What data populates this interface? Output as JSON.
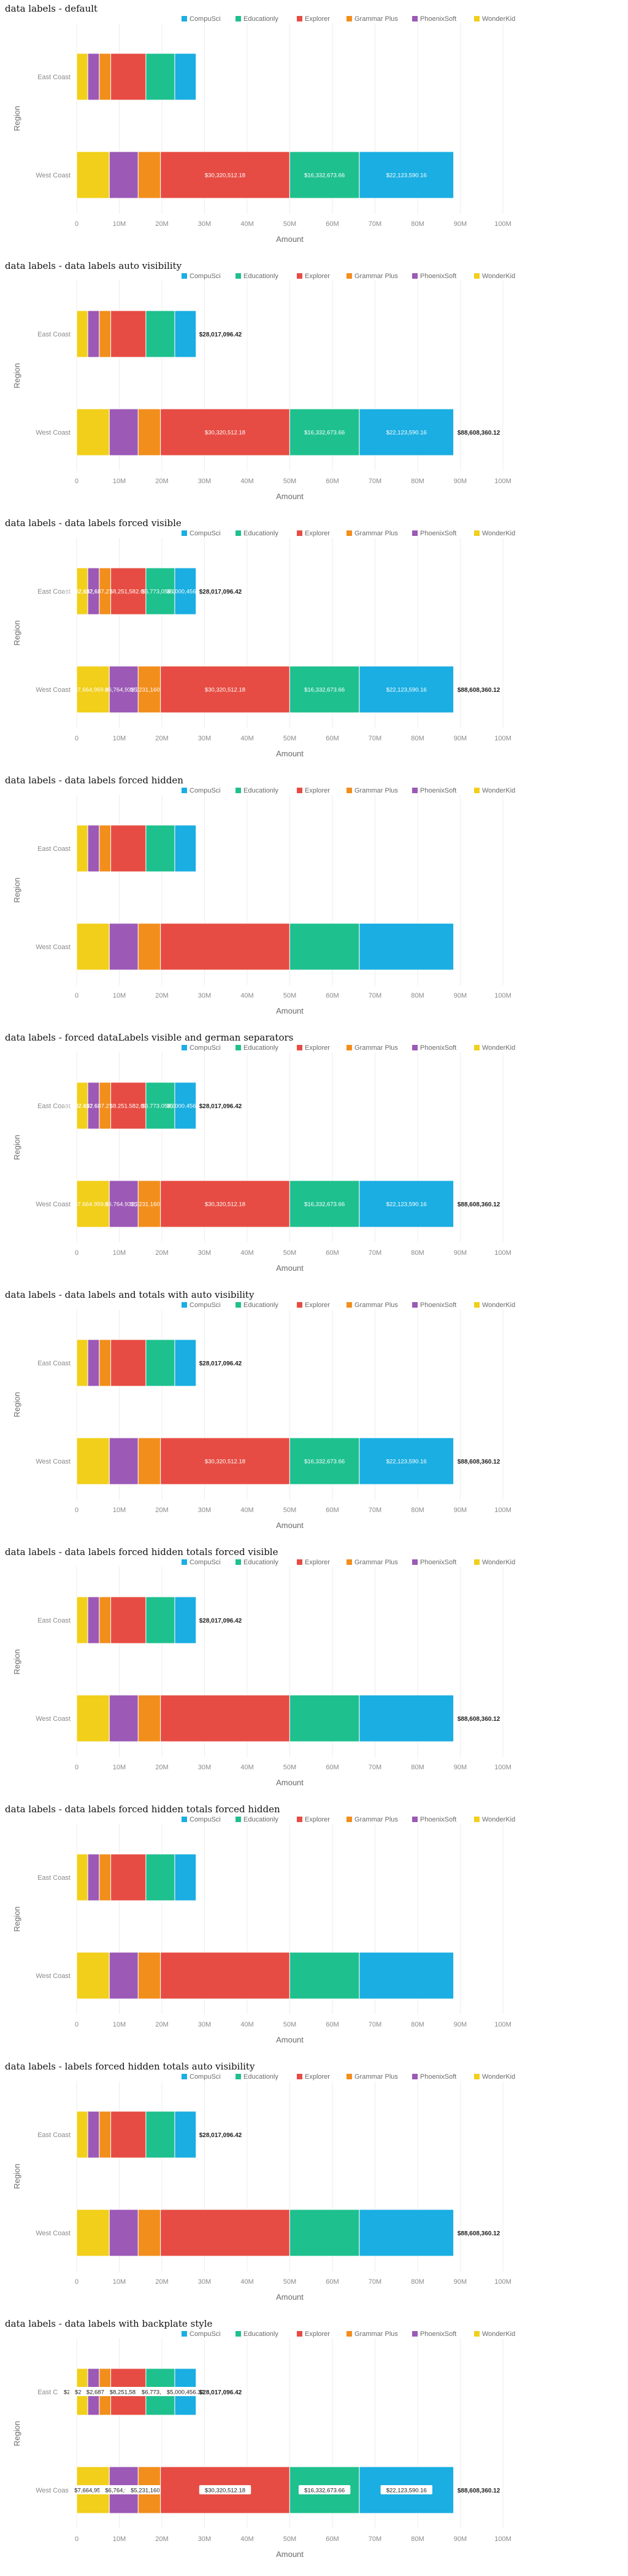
{
  "colors": {
    "CompuSci": "#1aaee2",
    "Educationly": "#1ec08e",
    "Explorer": "#e64c43",
    "Grammar Plus": "#f28e1c",
    "PhoenixSoft": "#9c59b6",
    "WonderKid": "#f1cf1a"
  },
  "chart_data": [
    {
      "type": "bar",
      "title": "data labels - default",
      "orientation": "horizontal",
      "stacked": true,
      "xlabel": "Amount",
      "ylabel": "Region",
      "categories": [
        "East Coast",
        "West Coast"
      ],
      "x_ticks": [
        "0",
        "10M",
        "20M",
        "30M",
        "40M",
        "50M",
        "60M",
        "70M",
        "80M",
        "90M",
        "100M"
      ],
      "xlim": [
        0,
        100000000
      ],
      "legend": "top-right",
      "grid": true,
      "series": [
        {
          "name": "WonderKid",
          "values": [
            2607114,
            7664959
          ],
          "labels": [
            "",
            ""
          ]
        },
        {
          "name": "PhoenixSoft",
          "values": [
            2697617,
            6764932
          ],
          "labels": [
            "",
            ""
          ]
        },
        {
          "name": "Grammar Plus",
          "values": [
            2687273,
            5231160
          ],
          "labels": [
            "",
            ""
          ]
        },
        {
          "name": "Explorer",
          "values": [
            8251582,
            30320512
          ],
          "labels": [
            "",
            "$30,320,512.18"
          ]
        },
        {
          "name": "Educationly",
          "values": [
            6773054,
            16332674
          ],
          "labels": [
            "",
            "$16,332,673.66"
          ]
        },
        {
          "name": "CompuSci",
          "values": [
            5000456,
            22123590
          ],
          "labels": [
            "",
            "$22,123,590.16"
          ]
        }
      ],
      "totals": [
        28017096,
        88608360
      ],
      "total_labels": [
        "",
        ""
      ]
    },
    {
      "type": "bar",
      "title": "data labels - data labels auto visibility",
      "orientation": "horizontal",
      "stacked": true,
      "xlabel": "Amount",
      "ylabel": "Region",
      "categories": [
        "East Coast",
        "West Coast"
      ],
      "x_ticks": [
        "0",
        "10M",
        "20M",
        "30M",
        "40M",
        "50M",
        "60M",
        "70M",
        "80M",
        "90M",
        "100M"
      ],
      "xlim": [
        0,
        100000000
      ],
      "legend": "top-right",
      "grid": true,
      "series": [
        {
          "name": "WonderKid",
          "values": [
            2607114,
            7664959
          ],
          "labels": [
            "",
            ""
          ]
        },
        {
          "name": "PhoenixSoft",
          "values": [
            2697617,
            6764932
          ],
          "labels": [
            "",
            ""
          ]
        },
        {
          "name": "Grammar Plus",
          "values": [
            2687273,
            5231160
          ],
          "labels": [
            "",
            ""
          ]
        },
        {
          "name": "Explorer",
          "values": [
            8251582,
            30320512
          ],
          "labels": [
            "",
            "$30,320,512.18"
          ]
        },
        {
          "name": "Educationly",
          "values": [
            6773054,
            16332674
          ],
          "labels": [
            "",
            "$16,332,673.66"
          ]
        },
        {
          "name": "CompuSci",
          "values": [
            5000456,
            22123590
          ],
          "labels": [
            "",
            "$22,123,590.16"
          ]
        }
      ],
      "totals": [
        28017096,
        88608360
      ],
      "total_labels": [
        "$28,017,096.42",
        "$88,608,360.12"
      ]
    },
    {
      "type": "bar",
      "title": "data labels - data labels forced visible",
      "orientation": "horizontal",
      "stacked": true,
      "xlabel": "Amount",
      "ylabel": "Region",
      "categories": [
        "East Coast",
        "West Coast"
      ],
      "x_ticks": [
        "0",
        "10M",
        "20M",
        "30M",
        "40M",
        "50M",
        "60M",
        "70M",
        "80M",
        "90M",
        "100M"
      ],
      "xlim": [
        0,
        100000000
      ],
      "legend": "top-right",
      "grid": true,
      "series": [
        {
          "name": "WonderKid",
          "values": [
            2607114,
            7664959
          ],
          "labels": [
            "$2,607,114.07",
            "$7,664,959.07"
          ]
        },
        {
          "name": "PhoenixSoft",
          "values": [
            2697617,
            6764932
          ],
          "labels": [
            "$2,697,617.62",
            "$6,764,932.35"
          ]
        },
        {
          "name": "Grammar Plus",
          "values": [
            2687273,
            5231160
          ],
          "labels": [
            "$2,687,273.21",
            "$5,231,160.48"
          ]
        },
        {
          "name": "Explorer",
          "values": [
            8251582,
            30320512
          ],
          "labels": [
            "$8,251,582.60",
            "$30,320,512.18"
          ]
        },
        {
          "name": "Educationly",
          "values": [
            6773054,
            16332674
          ],
          "labels": [
            "$6,773,054.00",
            "$16,332,673.66"
          ]
        },
        {
          "name": "CompuSci",
          "values": [
            5000456,
            22123590
          ],
          "labels": [
            "$5,000,456.32",
            "$22,123,590.16"
          ]
        }
      ],
      "totals": [
        28017096,
        88608360
      ],
      "total_labels": [
        "$28,017,096.42",
        "$88,608,360.12"
      ]
    },
    {
      "type": "bar",
      "title": "data labels - data labels forced hidden",
      "orientation": "horizontal",
      "stacked": true,
      "xlabel": "Amount",
      "ylabel": "Region",
      "categories": [
        "East Coast",
        "West Coast"
      ],
      "x_ticks": [
        "0",
        "10M",
        "20M",
        "30M",
        "40M",
        "50M",
        "60M",
        "70M",
        "80M",
        "90M",
        "100M"
      ],
      "xlim": [
        0,
        100000000
      ],
      "legend": "top-right",
      "grid": true,
      "series": [
        {
          "name": "WonderKid",
          "values": [
            2607114,
            7664959
          ],
          "labels": [
            "",
            ""
          ]
        },
        {
          "name": "PhoenixSoft",
          "values": [
            2697617,
            6764932
          ],
          "labels": [
            "",
            ""
          ]
        },
        {
          "name": "Grammar Plus",
          "values": [
            2687273,
            5231160
          ],
          "labels": [
            "",
            ""
          ]
        },
        {
          "name": "Explorer",
          "values": [
            8251582,
            30320512
          ],
          "labels": [
            "",
            ""
          ]
        },
        {
          "name": "Educationly",
          "values": [
            6773054,
            16332674
          ],
          "labels": [
            "",
            ""
          ]
        },
        {
          "name": "CompuSci",
          "values": [
            5000456,
            22123590
          ],
          "labels": [
            "",
            ""
          ]
        }
      ],
      "totals": [
        28017096,
        88608360
      ],
      "total_labels": [
        "",
        ""
      ]
    },
    {
      "type": "bar",
      "title": "data labels - forced dataLabels visible and german separators",
      "orientation": "horizontal",
      "stacked": true,
      "xlabel": "Amount",
      "ylabel": "Region",
      "categories": [
        "East Coast",
        "West Coast"
      ],
      "x_ticks": [
        "0",
        "10M",
        "20M",
        "30M",
        "40M",
        "50M",
        "60M",
        "70M",
        "80M",
        "90M",
        "100M"
      ],
      "xlim": [
        0,
        100000000
      ],
      "legend": "top-right",
      "grid": true,
      "series": [
        {
          "name": "WonderKid",
          "values": [
            2607114,
            7664959
          ],
          "labels": [
            "$2.607.114,07",
            "$7.664.959,07"
          ]
        },
        {
          "name": "PhoenixSoft",
          "values": [
            2697617,
            6764932
          ],
          "labels": [
            "$2.697.617,62",
            "$6.764.932,35"
          ]
        },
        {
          "name": "Grammar Plus",
          "values": [
            2687273,
            5231160
          ],
          "labels": [
            "$2.687.273,21",
            "$5.231.160,48"
          ]
        },
        {
          "name": "Explorer",
          "values": [
            8251582,
            30320512
          ],
          "labels": [
            "$8.251.582,60",
            "$30,320,512.18"
          ]
        },
        {
          "name": "Educationly",
          "values": [
            6773054,
            16332674
          ],
          "labels": [
            "$6.773.054,00",
            "$16,332,673.66"
          ]
        },
        {
          "name": "CompuSci",
          "values": [
            5000456,
            22123590
          ],
          "labels": [
            "$5.000.456,32",
            "$22,123,590.16"
          ]
        }
      ],
      "totals": [
        28017096,
        88608360
      ],
      "total_labels": [
        "$28,017,096.42",
        "$88,608,360.12"
      ]
    },
    {
      "type": "bar",
      "title": "data labels - data labels and totals with auto visibility",
      "orientation": "horizontal",
      "stacked": true,
      "xlabel": "Amount",
      "ylabel": "Region",
      "categories": [
        "East Coast",
        "West Coast"
      ],
      "x_ticks": [
        "0",
        "10M",
        "20M",
        "30M",
        "40M",
        "50M",
        "60M",
        "70M",
        "80M",
        "90M",
        "100M"
      ],
      "xlim": [
        0,
        100000000
      ],
      "legend": "top-right",
      "grid": true,
      "series": [
        {
          "name": "WonderKid",
          "values": [
            2607114,
            7664959
          ],
          "labels": [
            "",
            ""
          ]
        },
        {
          "name": "PhoenixSoft",
          "values": [
            2697617,
            6764932
          ],
          "labels": [
            "",
            ""
          ]
        },
        {
          "name": "Grammar Plus",
          "values": [
            2687273,
            5231160
          ],
          "labels": [
            "",
            ""
          ]
        },
        {
          "name": "Explorer",
          "values": [
            8251582,
            30320512
          ],
          "labels": [
            "",
            "$30,320,512.18"
          ]
        },
        {
          "name": "Educationly",
          "values": [
            6773054,
            16332674
          ],
          "labels": [
            "",
            "$16,332,673.66"
          ]
        },
        {
          "name": "CompuSci",
          "values": [
            5000456,
            22123590
          ],
          "labels": [
            "",
            "$22,123,590.16"
          ]
        }
      ],
      "totals": [
        28017096,
        88608360
      ],
      "total_labels": [
        "$28,017,096.42",
        "$88,608,360.12"
      ]
    },
    {
      "type": "bar",
      "title": "data labels - data labels forced hidden totals forced visible",
      "orientation": "horizontal",
      "stacked": true,
      "xlabel": "Amount",
      "ylabel": "Region",
      "categories": [
        "East Coast",
        "West Coast"
      ],
      "x_ticks": [
        "0",
        "10M",
        "20M",
        "30M",
        "40M",
        "50M",
        "60M",
        "70M",
        "80M",
        "90M",
        "100M"
      ],
      "xlim": [
        0,
        100000000
      ],
      "legend": "top-right",
      "grid": true,
      "series": [
        {
          "name": "WonderKid",
          "values": [
            2607114,
            7664959
          ],
          "labels": [
            "",
            ""
          ]
        },
        {
          "name": "PhoenixSoft",
          "values": [
            2697617,
            6764932
          ],
          "labels": [
            "",
            ""
          ]
        },
        {
          "name": "Grammar Plus",
          "values": [
            2687273,
            5231160
          ],
          "labels": [
            "",
            ""
          ]
        },
        {
          "name": "Explorer",
          "values": [
            8251582,
            30320512
          ],
          "labels": [
            "",
            ""
          ]
        },
        {
          "name": "Educationly",
          "values": [
            6773054,
            16332674
          ],
          "labels": [
            "",
            ""
          ]
        },
        {
          "name": "CompuSci",
          "values": [
            5000456,
            22123590
          ],
          "labels": [
            "",
            ""
          ]
        }
      ],
      "totals": [
        28017096,
        88608360
      ],
      "total_labels": [
        "$28,017,096.42",
        "$88,608,360.12"
      ]
    },
    {
      "type": "bar",
      "title": "data labels - data labels forced hidden totals forced hidden",
      "orientation": "horizontal",
      "stacked": true,
      "xlabel": "Amount",
      "ylabel": "Region",
      "categories": [
        "East Coast",
        "West Coast"
      ],
      "x_ticks": [
        "0",
        "10M",
        "20M",
        "30M",
        "40M",
        "50M",
        "60M",
        "70M",
        "80M",
        "90M",
        "100M"
      ],
      "xlim": [
        0,
        100000000
      ],
      "legend": "top-right",
      "grid": true,
      "series": [
        {
          "name": "WonderKid",
          "values": [
            2607114,
            7664959
          ],
          "labels": [
            "",
            ""
          ]
        },
        {
          "name": "PhoenixSoft",
          "values": [
            2697617,
            6764932
          ],
          "labels": [
            "",
            ""
          ]
        },
        {
          "name": "Grammar Plus",
          "values": [
            2687273,
            5231160
          ],
          "labels": [
            "",
            ""
          ]
        },
        {
          "name": "Explorer",
          "values": [
            8251582,
            30320512
          ],
          "labels": [
            "",
            ""
          ]
        },
        {
          "name": "Educationly",
          "values": [
            6773054,
            16332674
          ],
          "labels": [
            "",
            ""
          ]
        },
        {
          "name": "CompuSci",
          "values": [
            5000456,
            22123590
          ],
          "labels": [
            "",
            ""
          ]
        }
      ],
      "totals": [
        28017096,
        88608360
      ],
      "total_labels": [
        "",
        ""
      ]
    },
    {
      "type": "bar",
      "title": "data labels - labels forced hidden totals auto visibility",
      "orientation": "horizontal",
      "stacked": true,
      "xlabel": "Amount",
      "ylabel": "Region",
      "categories": [
        "East Coast",
        "West Coast"
      ],
      "x_ticks": [
        "0",
        "10M",
        "20M",
        "30M",
        "40M",
        "50M",
        "60M",
        "70M",
        "80M",
        "90M",
        "100M"
      ],
      "xlim": [
        0,
        100000000
      ],
      "legend": "top-right",
      "grid": true,
      "series": [
        {
          "name": "WonderKid",
          "values": [
            2607114,
            7664959
          ],
          "labels": [
            "",
            ""
          ]
        },
        {
          "name": "PhoenixSoft",
          "values": [
            2697617,
            6764932
          ],
          "labels": [
            "",
            ""
          ]
        },
        {
          "name": "Grammar Plus",
          "values": [
            2687273,
            5231160
          ],
          "labels": [
            "",
            ""
          ]
        },
        {
          "name": "Explorer",
          "values": [
            8251582,
            30320512
          ],
          "labels": [
            "",
            ""
          ]
        },
        {
          "name": "Educationly",
          "values": [
            6773054,
            16332674
          ],
          "labels": [
            "",
            ""
          ]
        },
        {
          "name": "CompuSci",
          "values": [
            5000456,
            22123590
          ],
          "labels": [
            "",
            ""
          ]
        }
      ],
      "totals": [
        28017096,
        88608360
      ],
      "total_labels": [
        "$28,017,096.42",
        "$88,608,360.12"
      ]
    },
    {
      "type": "bar",
      "title": "data labels - data labels with backplate style",
      "orientation": "horizontal",
      "stacked": true,
      "xlabel": "Amount",
      "ylabel": "Region",
      "categories": [
        "East Coast",
        "West Coast"
      ],
      "x_ticks": [
        "0",
        "10M",
        "20M",
        "30M",
        "40M",
        "50M",
        "60M",
        "70M",
        "80M",
        "90M",
        "100M"
      ],
      "xlim": [
        0,
        100000000
      ],
      "legend": "top-right",
      "grid": true,
      "label_style": "backplate",
      "series": [
        {
          "name": "WonderKid",
          "values": [
            2607114,
            7664959
          ],
          "labels": [
            "$2,607,114.07",
            "$7,664,959.07"
          ]
        },
        {
          "name": "PhoenixSoft",
          "values": [
            2697617,
            6764932
          ],
          "labels": [
            "$2,697,617.62",
            "$6,764,932.35"
          ]
        },
        {
          "name": "Grammar Plus",
          "values": [
            2687273,
            5231160
          ],
          "labels": [
            "$2,687,273.21",
            "$5,231,160.48"
          ]
        },
        {
          "name": "Explorer",
          "values": [
            8251582,
            30320512
          ],
          "labels": [
            "$8,251,582.60",
            "$30,320,512.18"
          ]
        },
        {
          "name": "Educationly",
          "values": [
            6773054,
            16332674
          ],
          "labels": [
            "$6,773,054.00",
            "$16,332,673.66"
          ]
        },
        {
          "name": "CompuSci",
          "values": [
            5000456,
            22123590
          ],
          "labels": [
            "$5,000,456.32",
            "$22,123,590.16"
          ]
        }
      ],
      "totals": [
        28017096,
        88608360
      ],
      "total_labels": [
        "$28,017,096.42",
        "$88,608,360.12"
      ]
    }
  ]
}
